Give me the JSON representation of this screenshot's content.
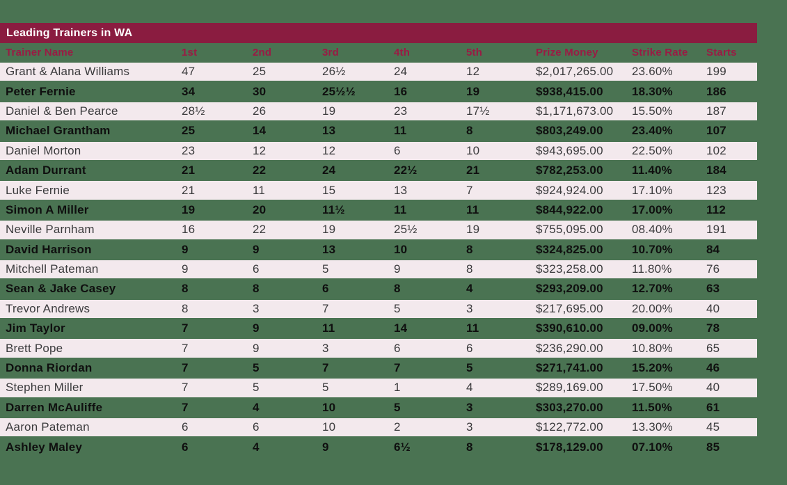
{
  "colors": {
    "background_green": "#4a7352",
    "title_bar_maroon": "#8a1c40",
    "header_text_maroon": "#9a1b44",
    "row_pink": "#f3e9ed",
    "pink_row_text": "#3b3b3d",
    "green_row_text": "#0f0f0f",
    "title_text": "#ffffff"
  },
  "chart_data": {
    "type": "table",
    "title": "Leading Trainers in WA",
    "columns": [
      "Trainer Name",
      "1st",
      "2nd",
      "3rd",
      "4th",
      "5th",
      "Prize Money",
      "Strike Rate",
      "Starts"
    ],
    "rows": [
      {
        "cells": [
          "Grant & Alana Williams",
          "47",
          "25",
          "26½",
          "24",
          "12",
          "$2,017,265.00",
          "23.60%",
          "199"
        ]
      },
      {
        "cells": [
          "Peter Fernie",
          "34",
          "30",
          "25½½",
          "16",
          "19",
          "$938,415.00",
          "18.30%",
          "186"
        ]
      },
      {
        "cells": [
          "Daniel & Ben Pearce",
          "28½",
          "26",
          "19",
          "23",
          "17½",
          "$1,171,673.00",
          "15.50%",
          "187"
        ]
      },
      {
        "cells": [
          "Michael Grantham",
          "25",
          "14",
          "13",
          "11",
          "8",
          "$803,249.00",
          "23.40%",
          "107"
        ]
      },
      {
        "cells": [
          "Daniel Morton",
          "23",
          "12",
          "12",
          "6",
          "10",
          "$943,695.00",
          "22.50%",
          "102"
        ]
      },
      {
        "cells": [
          "Adam Durrant",
          "21",
          "22",
          "24",
          "22½",
          "21",
          "$782,253.00",
          "11.40%",
          "184"
        ]
      },
      {
        "cells": [
          "Luke Fernie",
          "21",
          "11",
          "15",
          "13",
          "7",
          "$924,924.00",
          "17.10%",
          "123"
        ]
      },
      {
        "cells": [
          "Simon A Miller",
          "19",
          "20",
          "11½",
          "11",
          "11",
          "$844,922.00",
          "17.00%",
          "112"
        ]
      },
      {
        "cells": [
          "Neville Parnham",
          "16",
          "22",
          "19",
          "25½",
          "19",
          "$755,095.00",
          "08.40%",
          "191"
        ]
      },
      {
        "cells": [
          "David Harrison",
          "9",
          "9",
          "13",
          "10",
          "8",
          "$324,825.00",
          "10.70%",
          "84"
        ]
      },
      {
        "cells": [
          "Mitchell Pateman",
          "9",
          "6",
          "5",
          "9",
          "8",
          "$323,258.00",
          "11.80%",
          "76"
        ]
      },
      {
        "cells": [
          "Sean & Jake Casey",
          "8",
          "8",
          "6",
          "8",
          "4",
          "$293,209.00",
          "12.70%",
          "63"
        ]
      },
      {
        "cells": [
          "Trevor Andrews",
          "8",
          "3",
          "7",
          "5",
          "3",
          "$217,695.00",
          "20.00%",
          "40"
        ]
      },
      {
        "cells": [
          "Jim Taylor",
          "7",
          "9",
          "11",
          "14",
          "11",
          "$390,610.00",
          "09.00%",
          "78"
        ]
      },
      {
        "cells": [
          "Brett Pope",
          "7",
          "9",
          "3",
          "6",
          "6",
          "$236,290.00",
          "10.80%",
          "65"
        ]
      },
      {
        "cells": [
          "Donna Riordan",
          "7",
          "5",
          "7",
          "7",
          "5",
          "$271,741.00",
          "15.20%",
          "46"
        ]
      },
      {
        "cells": [
          "Stephen Miller",
          "7",
          "5",
          "5",
          "1",
          "4",
          "$289,169.00",
          "17.50%",
          "40"
        ]
      },
      {
        "cells": [
          "Darren McAuliffe",
          "7",
          "4",
          "10",
          "5",
          "3",
          "$303,270.00",
          "11.50%",
          "61"
        ]
      },
      {
        "cells": [
          "Aaron Pateman",
          "6",
          "6",
          "10",
          "2",
          "3",
          "$122,772.00",
          "13.30%",
          "45"
        ]
      },
      {
        "cells": [
          "Ashley Maley",
          "6",
          "4",
          "9",
          "6½",
          "8",
          "$178,129.00",
          "07.10%",
          "85"
        ]
      }
    ]
  }
}
